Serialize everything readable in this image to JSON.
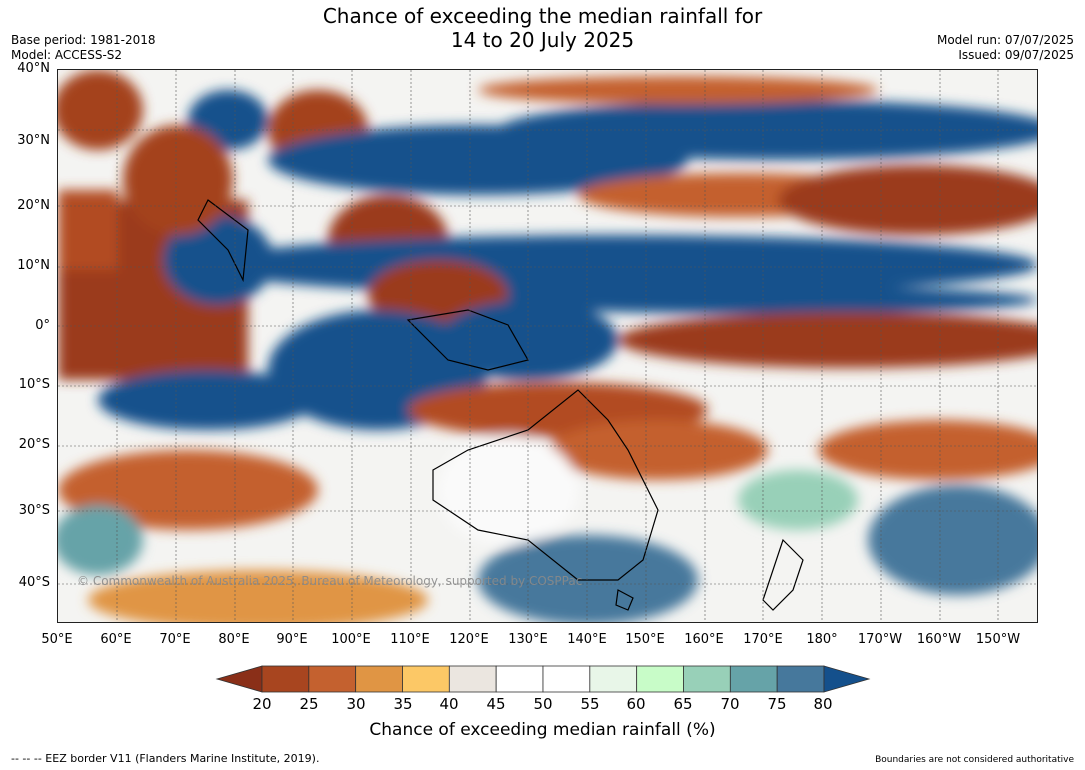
{
  "title": {
    "line1": "Chance of exceeding the median rainfall for",
    "line2": "14 to 20 July 2025"
  },
  "meta": {
    "base_period": "Base period: 1981-2018",
    "model": "Model: ACCESS-S2",
    "model_run": "Model run: 07/07/2025",
    "issued": "Issued: 09/07/2025"
  },
  "map": {
    "lat_labels": [
      "40°N",
      "30°N",
      "20°N",
      "10°N",
      "0°",
      "10°S",
      "20°S",
      "30°S",
      "40°S"
    ],
    "lon_labels": [
      "50°E",
      "60°E",
      "70°E",
      "80°E",
      "90°E",
      "100°E",
      "110°E",
      "120°E",
      "130°E",
      "140°E",
      "150°E",
      "160°E",
      "170°E",
      "180°",
      "170°W",
      "160°W",
      "150°W"
    ],
    "watermark": "© Commonwealth of Australia 2025, Bureau of Meteorology, supported by COSPPac"
  },
  "colorbar": {
    "labels": [
      "20",
      "25",
      "30",
      "35",
      "40",
      "45",
      "50",
      "55",
      "60",
      "65",
      "70",
      "75",
      "80"
    ],
    "colors": [
      "#8a2f18",
      "#a8451f",
      "#c4612f",
      "#e09544",
      "#fcc866",
      "#ebe6e0",
      "#ffffff",
      "#ffffff",
      "#e8f6e8",
      "#c8fcc8",
      "#98d0b8",
      "#66a3a8",
      "#46789c",
      "#14508c"
    ],
    "title": "Chance of exceeding median rainfall (%)"
  },
  "footer": {
    "eez": "--  --  -- EEZ border V11 (Flanders Marine Institute, 2019).",
    "disclaimer": "Boundaries are not considered authoritative"
  }
}
